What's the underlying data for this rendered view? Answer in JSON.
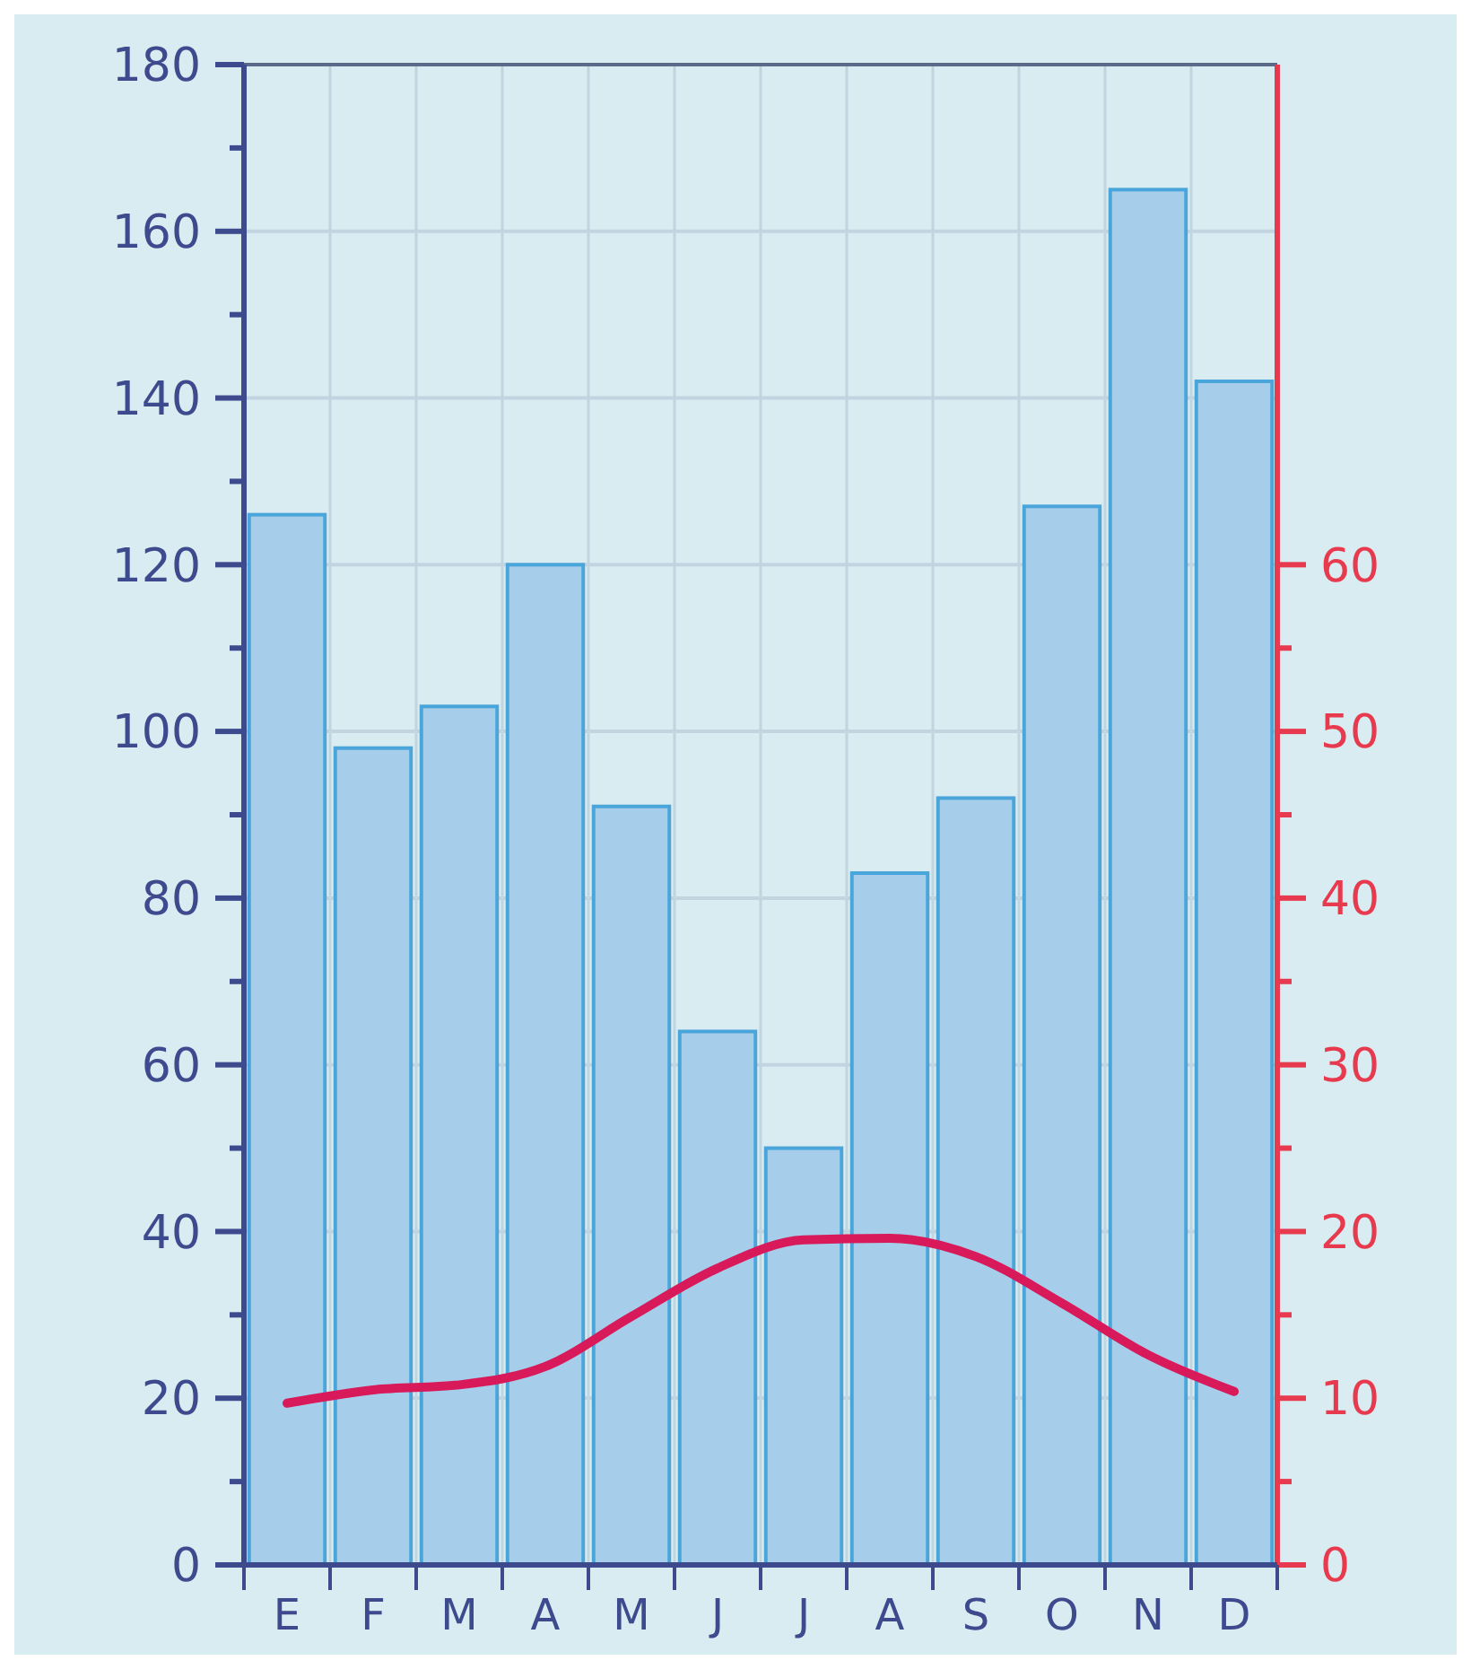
{
  "chart_data": {
    "type": "bar",
    "categories": [
      "E",
      "F",
      "M",
      "A",
      "M",
      "J",
      "J",
      "A",
      "S",
      "O",
      "N",
      "D"
    ],
    "series": [
      {
        "color": "#a6cdea",
        "values": [
          126,
          98,
          103,
          120,
          91,
          64,
          50,
          83,
          92,
          127,
          165,
          142
        ]
      },
      {
        "type": "line",
        "axis": "y2",
        "color": "#d8195a",
        "values": [
          9.7,
          10.5,
          10.8,
          11.9,
          14.9,
          17.8,
          19.5,
          19.6,
          18.5,
          15.7,
          12.6,
          10.4
        ]
      }
    ],
    "ylim": [
      0,
      180
    ],
    "yticks": [
      0,
      {
        "value": 10,
        "label": null
      },
      20,
      {
        "value": 30,
        "label": null
      },
      40,
      {
        "value": 50,
        "label": null
      },
      60,
      {
        "value": 70,
        "label": null
      },
      80,
      {
        "value": 90,
        "label": null
      },
      100,
      {
        "value": 110,
        "label": null
      },
      120,
      {
        "value": 130,
        "label": null
      },
      140,
      {
        "value": 150,
        "label": null
      },
      160,
      {
        "value": 170,
        "label": null
      },
      180
    ],
    "y2lim": [
      0,
      90
    ],
    "y2ticks": [
      0,
      {
        "value": 5,
        "label": null
      },
      10,
      {
        "value": 15,
        "label": null
      },
      20,
      {
        "value": 25,
        "label": null
      },
      30,
      {
        "value": 35,
        "label": null
      },
      40,
      {
        "value": 45,
        "label": null
      },
      50,
      {
        "value": 55,
        "label": null
      },
      60
    ],
    "grid": true,
    "line_style": "solid",
    "marker": "none"
  }
}
